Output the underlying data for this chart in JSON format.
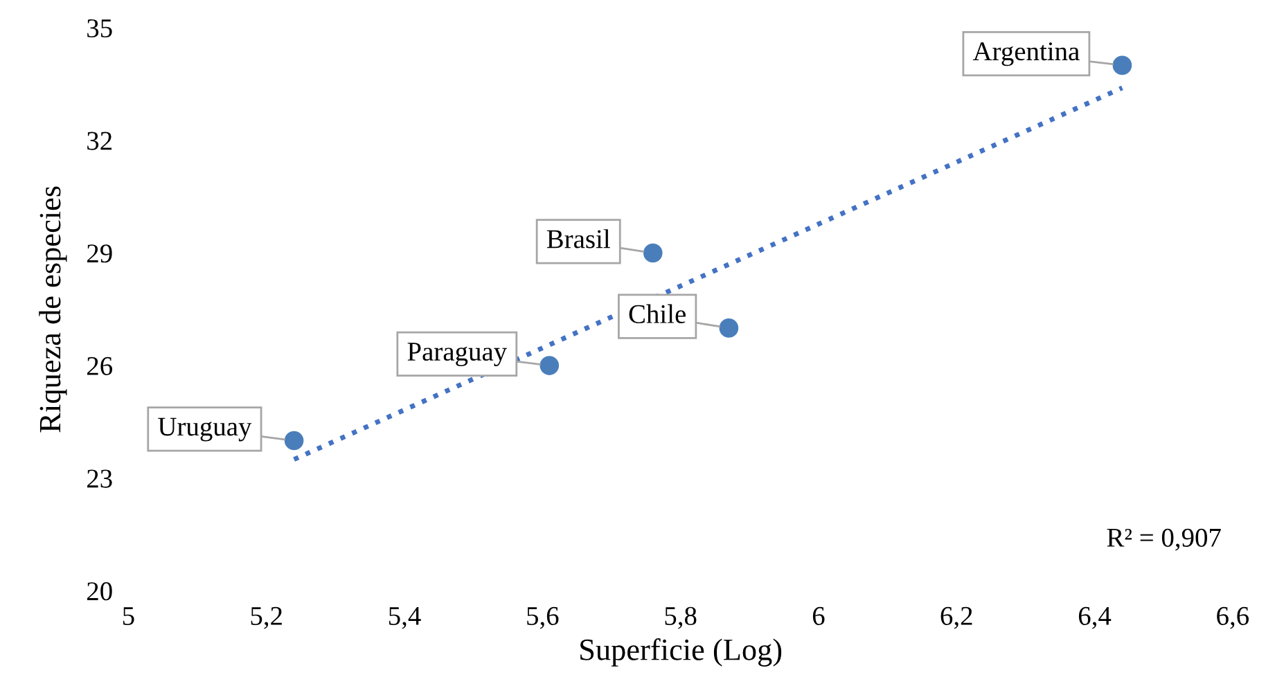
{
  "chart_data": {
    "type": "scatter",
    "xlabel": "Superficie (Log)",
    "ylabel": "Riqueza de especies",
    "xlim": [
      5,
      6.6
    ],
    "xticks": [
      5,
      {
        "value": 5.2,
        "label": "5,2"
      },
      {
        "value": 5.4,
        "label": "5,4"
      },
      {
        "value": 5.6,
        "label": "5,6"
      },
      {
        "value": 5.8,
        "label": "5,8"
      },
      6,
      {
        "value": 6.2,
        "label": "6,2"
      },
      {
        "value": 6.4,
        "label": "6,4"
      },
      {
        "value": 6.6,
        "label": "6,6"
      }
    ],
    "ylim": [
      20,
      35
    ],
    "yticks": [
      20,
      23,
      26,
      29,
      32,
      35
    ],
    "grid": false,
    "legend": false,
    "marker": "circle",
    "series": [
      {
        "color": "#4a7ebb",
        "x": [
          5.24,
          5.61,
          5.76,
          5.87,
          6.44
        ],
        "values": [
          24,
          26,
          29,
          27,
          34
        ]
      },
      {
        "type": "line",
        "color": "#4472c4",
        "line_style": "dotted",
        "marker": "none",
        "x": [
          5.24,
          6.44
        ],
        "values": [
          23.5,
          33.4
        ]
      }
    ],
    "annotations": [
      {
        "text": "Uruguay",
        "x": 5.24,
        "y": 24
      },
      {
        "text": "Paraguay",
        "x": 5.61,
        "y": 26
      },
      {
        "text": "Brasil",
        "x": 5.76,
        "y": 29
      },
      {
        "text": "Chile",
        "x": 5.87,
        "y": 27
      },
      {
        "text": "Argentina",
        "x": 6.44,
        "y": 34
      },
      "R² = 0,907"
    ]
  }
}
